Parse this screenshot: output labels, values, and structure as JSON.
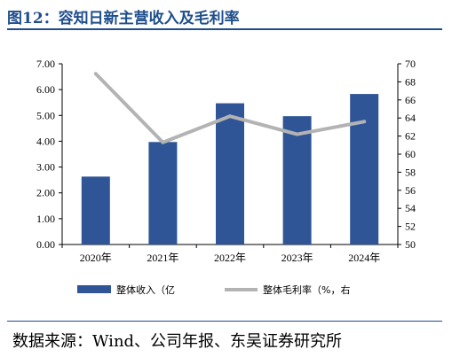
{
  "title": "图12：容知日新主营收入及毛利率",
  "source": "数据来源：Wind、公司年报、东吴证券研究所",
  "colors": {
    "bar": "#2f5597",
    "line": "#b3b3b3",
    "title": "#1f4e8c"
  },
  "chart_data": {
    "type": "bar+line",
    "categories": [
      "2020年",
      "2021年",
      "2022年",
      "2023年",
      "2024年"
    ],
    "series": [
      {
        "name": "整体收入（亿",
        "type": "bar",
        "axis": "left",
        "values": [
          2.63,
          3.97,
          5.47,
          4.97,
          5.83
        ]
      },
      {
        "name": "整体毛利率（%，右",
        "type": "line",
        "axis": "right",
        "values": [
          68.9,
          61.3,
          64.2,
          62.2,
          63.6
        ]
      }
    ],
    "y_left": {
      "ylim": [
        0,
        7
      ],
      "ticks": [
        "0.00",
        "1.00",
        "2.00",
        "3.00",
        "4.00",
        "5.00",
        "6.00",
        "7.00"
      ]
    },
    "y_right": {
      "ylim": [
        50,
        70
      ],
      "ticks": [
        "50",
        "52",
        "54",
        "56",
        "58",
        "60",
        "62",
        "64",
        "66",
        "68",
        "70"
      ]
    },
    "legend": "bottom",
    "grid": false
  }
}
